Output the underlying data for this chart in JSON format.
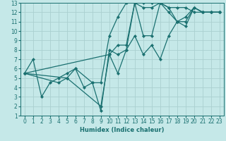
{
  "xlabel": "Humidex (Indice chaleur)",
  "bg_color": "#c5e8e8",
  "grid_color": "#aad0d0",
  "line_color": "#1a7070",
  "xlim": [
    -0.5,
    23.5
  ],
  "ylim": [
    1,
    13
  ],
  "xticks": [
    0,
    1,
    2,
    3,
    4,
    5,
    6,
    7,
    8,
    9,
    10,
    11,
    12,
    13,
    14,
    15,
    16,
    17,
    18,
    19,
    20,
    21,
    22,
    23
  ],
  "yticks": [
    1,
    2,
    3,
    4,
    5,
    6,
    7,
    8,
    9,
    10,
    11,
    12,
    13
  ],
  "lines": [
    {
      "x": [
        0,
        1,
        2,
        3,
        4,
        5,
        6,
        7,
        8,
        9,
        10,
        11,
        12,
        13,
        14,
        15,
        16,
        17,
        18,
        19,
        20,
        21,
        22,
        23
      ],
      "y": [
        5.5,
        7.0,
        3.0,
        4.5,
        5.0,
        5.5,
        6.0,
        4.0,
        4.5,
        4.5,
        9.5,
        11.5,
        13.0,
        13.0,
        13.0,
        13.0,
        13.0,
        12.5,
        12.5,
        12.5,
        12.0,
        12.0,
        12.0,
        12.0
      ]
    },
    {
      "x": [
        0,
        4,
        5,
        6,
        8,
        9,
        10,
        11,
        12,
        13,
        14,
        15,
        16,
        17,
        18,
        19,
        20,
        21,
        22,
        23
      ],
      "y": [
        5.5,
        4.5,
        5.0,
        6.0,
        4.5,
        1.5,
        8.0,
        7.5,
        8.0,
        13.0,
        12.5,
        12.5,
        13.0,
        12.5,
        11.0,
        11.0,
        12.5,
        12.0,
        12.0,
        12.0
      ]
    },
    {
      "x": [
        0,
        10,
        11,
        12,
        13,
        14,
        15,
        16,
        17,
        18,
        19,
        20,
        21,
        22,
        23
      ],
      "y": [
        5.5,
        7.5,
        8.5,
        8.5,
        13.0,
        9.5,
        9.5,
        13.0,
        12.0,
        11.0,
        10.5,
        12.5,
        12.0,
        12.0,
        12.0
      ]
    },
    {
      "x": [
        0,
        5,
        9,
        10,
        11,
        12,
        13,
        14,
        15,
        16,
        17,
        18,
        19,
        20,
        21,
        22,
        23
      ],
      "y": [
        5.5,
        5.0,
        2.0,
        7.5,
        5.5,
        8.0,
        9.5,
        7.5,
        8.5,
        7.0,
        9.5,
        11.0,
        11.5,
        12.5,
        12.0,
        12.0,
        12.0
      ]
    }
  ],
  "tick_fontsize": 5.5,
  "xlabel_fontsize": 6.0,
  "marker_size": 2.2,
  "linewidth": 0.9
}
